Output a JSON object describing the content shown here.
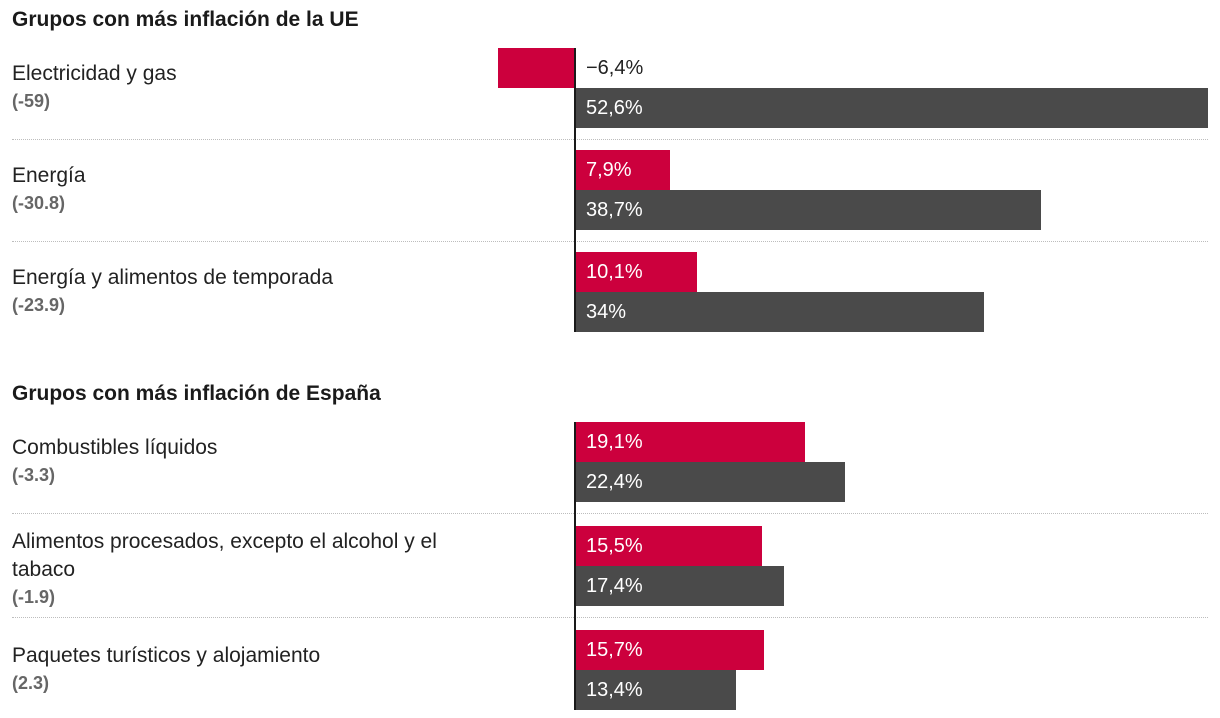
{
  "chart_data": {
    "type": "bar",
    "orientation": "horizontal",
    "xlim": [
      -6.4,
      52.6
    ],
    "colors": {
      "series_a": "#cc003d",
      "series_b": "#4a4a4a",
      "axis": "#1a1a1a"
    },
    "sections": [
      {
        "title": "Grupos con más inflación de la UE",
        "rows": [
          {
            "label": "Electricidad y gas",
            "diff": "(-59)",
            "values": [
              -6.4,
              52.6
            ],
            "texts": [
              "−6,4%",
              "52,6%"
            ]
          },
          {
            "label": "Energía",
            "diff": "(-30.8)",
            "values": [
              7.9,
              38.7
            ],
            "texts": [
              "7,9%",
              "38,7%"
            ]
          },
          {
            "label": "Energía y alimentos de temporada",
            "diff": "(-23.9)",
            "values": [
              10.1,
              34
            ],
            "texts": [
              "10,1%",
              "34%"
            ]
          }
        ]
      },
      {
        "title": "Grupos con más inflación de España",
        "rows": [
          {
            "label": "Combustibles líquidos",
            "diff": "(-3.3)",
            "values": [
              19.1,
              22.4
            ],
            "texts": [
              "19,1%",
              "22,4%"
            ]
          },
          {
            "label": "Alimentos procesados, excepto el alcohol y el tabaco",
            "diff": "(-1.9)",
            "values": [
              15.5,
              17.4
            ],
            "texts": [
              "15,5%",
              "17,4%"
            ]
          },
          {
            "label": "Paquetes turísticos y alojamiento",
            "diff": "(2.3)",
            "values": [
              15.7,
              13.4
            ],
            "texts": [
              "15,7%",
              "13,4%"
            ]
          }
        ]
      }
    ]
  }
}
